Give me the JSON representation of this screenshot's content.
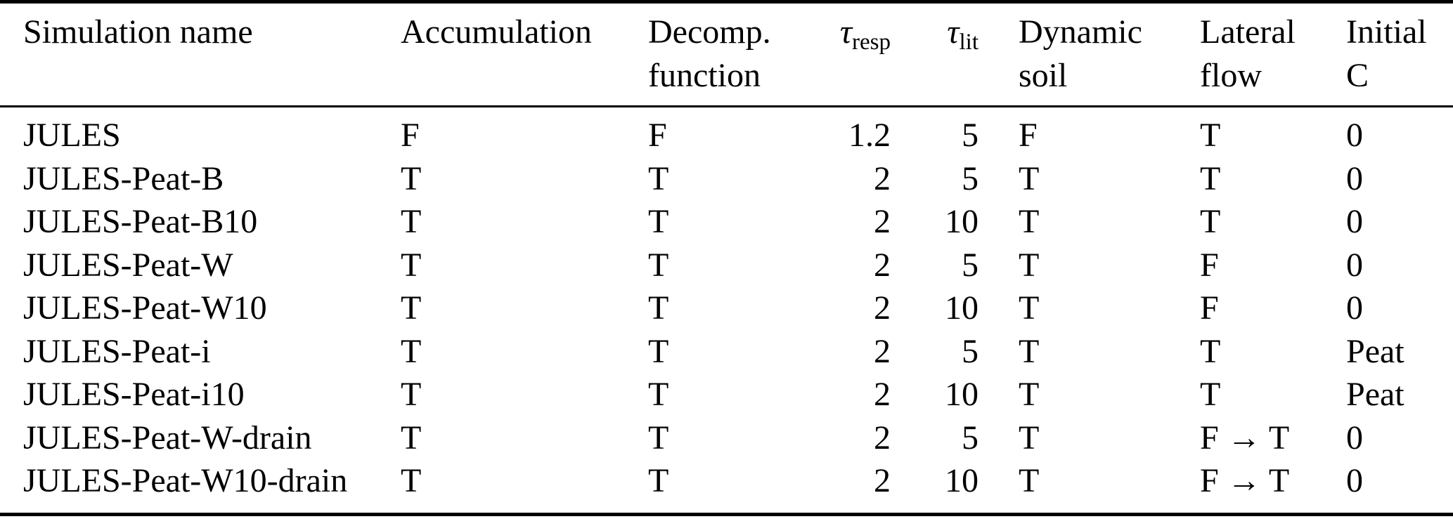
{
  "table": {
    "colors": {
      "text": "#000000",
      "background": "#ffffff",
      "rule": "#000000"
    },
    "columns": [
      {
        "id": "simulation-name",
        "line1": "Simulation name",
        "line2": "",
        "align": "left"
      },
      {
        "id": "accumulation",
        "line1": "Accumulation",
        "line2": "",
        "align": "left"
      },
      {
        "id": "decomp-function",
        "line1": "Decomp.",
        "line2": "function",
        "align": "left"
      },
      {
        "id": "tau-resp",
        "symbol": "τ",
        "subscript": "resp",
        "align": "right"
      },
      {
        "id": "tau-lit",
        "symbol": "τ",
        "subscript": "lit",
        "align": "right"
      },
      {
        "id": "dynamic-soil",
        "line1": "Dynamic",
        "line2": "soil",
        "align": "left"
      },
      {
        "id": "lateral-flow",
        "line1": "Lateral",
        "line2": "flow",
        "align": "left"
      },
      {
        "id": "initial-c",
        "line1": "Initial",
        "line2": "C",
        "align": "left"
      }
    ],
    "rows": [
      [
        "JULES",
        "F",
        "F",
        "1.2",
        "5",
        "F",
        "T",
        "0"
      ],
      [
        "JULES-Peat-B",
        "T",
        "T",
        "2",
        "5",
        "T",
        "T",
        "0"
      ],
      [
        "JULES-Peat-B10",
        "T",
        "T",
        "2",
        "10",
        "T",
        "T",
        "0"
      ],
      [
        "JULES-Peat-W",
        "T",
        "T",
        "2",
        "5",
        "T",
        "F",
        "0"
      ],
      [
        "JULES-Peat-W10",
        "T",
        "T",
        "2",
        "10",
        "T",
        "F",
        "0"
      ],
      [
        "JULES-Peat-i",
        "T",
        "T",
        "2",
        "5",
        "T",
        "T",
        "Peat"
      ],
      [
        "JULES-Peat-i10",
        "T",
        "T",
        "2",
        "10",
        "T",
        "T",
        "Peat"
      ],
      [
        "JULES-Peat-W-drain",
        "T",
        "T",
        "2",
        "5",
        "T",
        "F → T",
        "0"
      ],
      [
        "JULES-Peat-W10-drain",
        "T",
        "T",
        "2",
        "10",
        "T",
        "F → T",
        "0"
      ]
    ]
  }
}
